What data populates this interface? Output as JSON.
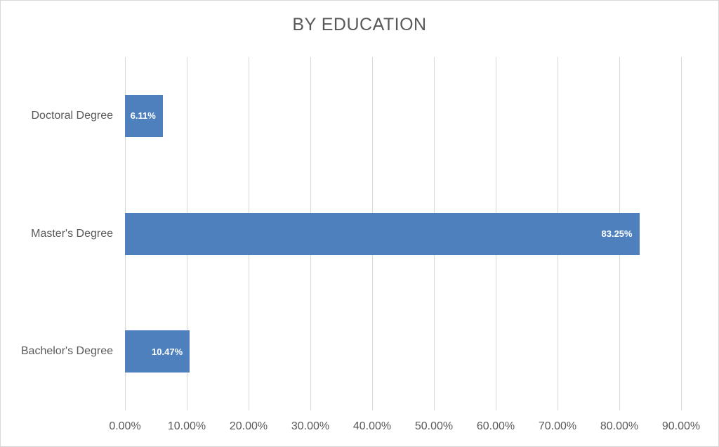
{
  "chart_data": {
    "type": "bar",
    "orientation": "horizontal",
    "title": "BY EDUCATION",
    "categories": [
      "Doctoral Degree",
      "Master's Degree",
      "Bachelor's Degree"
    ],
    "values": [
      6.11,
      83.25,
      10.47
    ],
    "value_labels": [
      "6.11%",
      "83.25%",
      "10.47%"
    ],
    "xlabel": "",
    "ylabel": "",
    "xlim": [
      0,
      90
    ],
    "x_tick_labels": [
      "0.00%",
      "10.00%",
      "20.00%",
      "30.00%",
      "40.00%",
      "50.00%",
      "60.00%",
      "70.00%",
      "80.00%",
      "90.00%"
    ],
    "gridlines": "vertical",
    "legend": "none",
    "data_label_position": "inside-end",
    "colors": {
      "bar": "#4e80bd",
      "data_label_text": "#ffffff",
      "axis_text": "#595959",
      "title_text": "#595959",
      "gridline": "#d9d9d9",
      "background": "#ffffff",
      "border": "#d9d9d9"
    }
  }
}
